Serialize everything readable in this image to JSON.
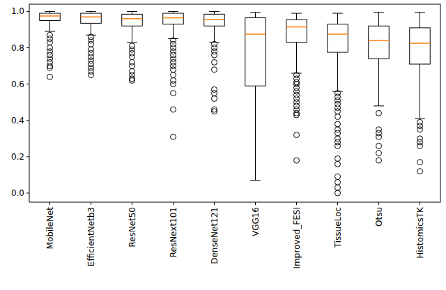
{
  "chart_data": {
    "type": "box",
    "categories": [
      "MobileNet",
      "EfficientNetb3",
      "ResNet50",
      "ResNext101",
      "DenseNet121",
      "VGG16",
      "Improved_FESI",
      "TissueLoc",
      "Otsu",
      "HistomicsTK"
    ],
    "boxes": [
      {
        "whislo": 0.89,
        "q1": 0.95,
        "med": 0.975,
        "q3": 0.99,
        "whishi": 1.0,
        "fliers": [
          0.87,
          0.85,
          0.83,
          0.8,
          0.78,
          0.76,
          0.74,
          0.72,
          0.7,
          0.69,
          0.64
        ]
      },
      {
        "whislo": 0.87,
        "q1": 0.935,
        "med": 0.97,
        "q3": 0.99,
        "whishi": 1.0,
        "fliers": [
          0.86,
          0.84,
          0.82,
          0.79,
          0.77,
          0.75,
          0.73,
          0.71,
          0.69,
          0.67,
          0.65
        ]
      },
      {
        "whislo": 0.83,
        "q1": 0.92,
        "med": 0.96,
        "q3": 0.985,
        "whishi": 1.0,
        "fliers": [
          0.81,
          0.79,
          0.77,
          0.75,
          0.72,
          0.7,
          0.67,
          0.65,
          0.63,
          0.62
        ]
      },
      {
        "whislo": 0.85,
        "q1": 0.93,
        "med": 0.965,
        "q3": 0.99,
        "whishi": 1.0,
        "fliers": [
          0.84,
          0.82,
          0.8,
          0.78,
          0.76,
          0.74,
          0.72,
          0.7,
          0.68,
          0.65,
          0.62,
          0.6,
          0.55,
          0.46,
          0.31
        ]
      },
      {
        "whislo": 0.83,
        "q1": 0.92,
        "med": 0.955,
        "q3": 0.985,
        "whishi": 1.0,
        "fliers": [
          0.82,
          0.8,
          0.78,
          0.76,
          0.72,
          0.68,
          0.57,
          0.55,
          0.52,
          0.46,
          0.45
        ]
      },
      {
        "whislo": 0.07,
        "q1": 0.59,
        "med": 0.875,
        "q3": 0.965,
        "whishi": 0.995,
        "fliers": []
      },
      {
        "whislo": 0.66,
        "q1": 0.83,
        "med": 0.915,
        "q3": 0.955,
        "whishi": 0.99,
        "fliers": [
          0.65,
          0.63,
          0.61,
          0.6,
          0.58,
          0.56,
          0.54,
          0.52,
          0.5,
          0.48,
          0.46,
          0.44,
          0.43,
          0.32,
          0.18
        ]
      },
      {
        "whislo": 0.56,
        "q1": 0.775,
        "med": 0.875,
        "q3": 0.93,
        "whishi": 0.99,
        "fliers": [
          0.55,
          0.53,
          0.51,
          0.49,
          0.47,
          0.45,
          0.42,
          0.38,
          0.35,
          0.33,
          0.3,
          0.28,
          0.26,
          0.19,
          0.16,
          0.09,
          0.06,
          0.03,
          0.0
        ]
      },
      {
        "whislo": 0.48,
        "q1": 0.74,
        "med": 0.84,
        "q3": 0.92,
        "whishi": 0.995,
        "fliers": [
          0.44,
          0.35,
          0.33,
          0.31,
          0.26,
          0.22,
          0.18
        ]
      },
      {
        "whislo": 0.41,
        "q1": 0.71,
        "med": 0.825,
        "q3": 0.91,
        "whishi": 0.995,
        "fliers": [
          0.39,
          0.37,
          0.35,
          0.3,
          0.28,
          0.26,
          0.17,
          0.12
        ]
      }
    ],
    "ylim": [
      -0.05,
      1.04
    ],
    "yticks": [
      {
        "value": 0,
        "label": "0.0"
      },
      {
        "value": 0.2,
        "label": "0.2"
      },
      {
        "value": 0.4,
        "label": "0.4"
      },
      {
        "value": 0.6,
        "label": "0.6"
      },
      {
        "value": 0.8,
        "label": "0.8"
      },
      {
        "value": 1,
        "label": "1.0"
      }
    ],
    "grid": false
  }
}
